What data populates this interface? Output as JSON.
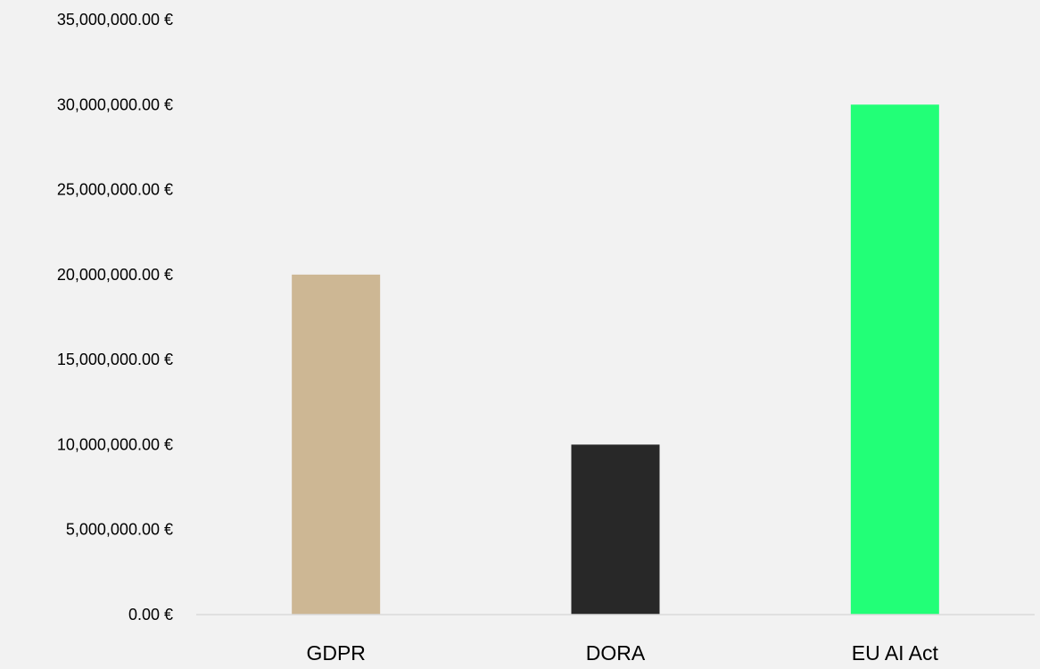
{
  "chart_data": {
    "type": "bar",
    "title": "",
    "xlabel": "",
    "ylabel": "",
    "categories": [
      "GDPR",
      "DORA",
      "EU AI Act"
    ],
    "values": [
      20000000,
      10000000,
      30000000
    ],
    "colors": [
      "#cdb794",
      "#282828",
      "#22ff77"
    ],
    "ylim": [
      0,
      35000000
    ],
    "yticks": [
      0,
      5000000,
      10000000,
      15000000,
      20000000,
      25000000,
      30000000,
      35000000
    ],
    "ytick_labels": [
      "0.00 €",
      "5,000,000.00 €",
      "10,000,000.00 €",
      "15,000,000.00 €",
      "20,000,000.00 €",
      "25,000,000.00 €",
      "30,000,000.00 €",
      "35,000,000.00 €"
    ],
    "grid": false,
    "legend": "none"
  }
}
